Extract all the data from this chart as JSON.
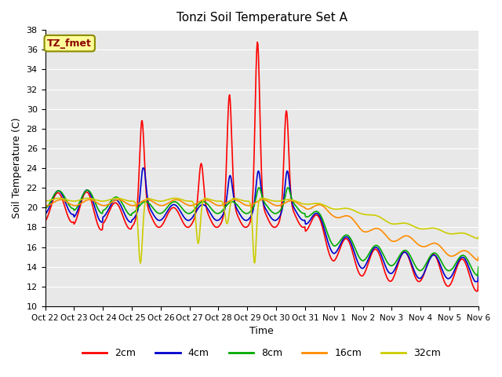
{
  "title": "Tonzi Soil Temperature Set A",
  "xlabel": "Time",
  "ylabel": "Soil Temperature (C)",
  "ylim": [
    10,
    38
  ],
  "yticks": [
    10,
    12,
    14,
    16,
    18,
    20,
    22,
    24,
    26,
    28,
    30,
    32,
    34,
    36,
    38
  ],
  "xtick_labels": [
    "Oct 22",
    "Oct 23",
    "Oct 24",
    "Oct 25",
    "Oct 26",
    "Oct 27",
    "Oct 28",
    "Oct 29",
    "Oct 30",
    "Oct 31",
    "Nov 1",
    "Nov 2",
    "Nov 3",
    "Nov 4",
    "Nov 5",
    "Nov 6"
  ],
  "annotation_label": "TZ_fmet",
  "annotation_text_color": "#8B0000",
  "annotation_bg_color": "#FFFF99",
  "annotation_border_color": "#8B8B00",
  "bg_color": "#E8E8E8",
  "legend_entries": [
    "2cm",
    "4cm",
    "8cm",
    "16cm",
    "32cm"
  ],
  "line_colors": [
    "#FF0000",
    "#0000CD",
    "#00AA00",
    "#FF8C00",
    "#CCCC00"
  ],
  "line_widths": [
    1.2,
    1.2,
    1.2,
    1.2,
    1.2
  ]
}
